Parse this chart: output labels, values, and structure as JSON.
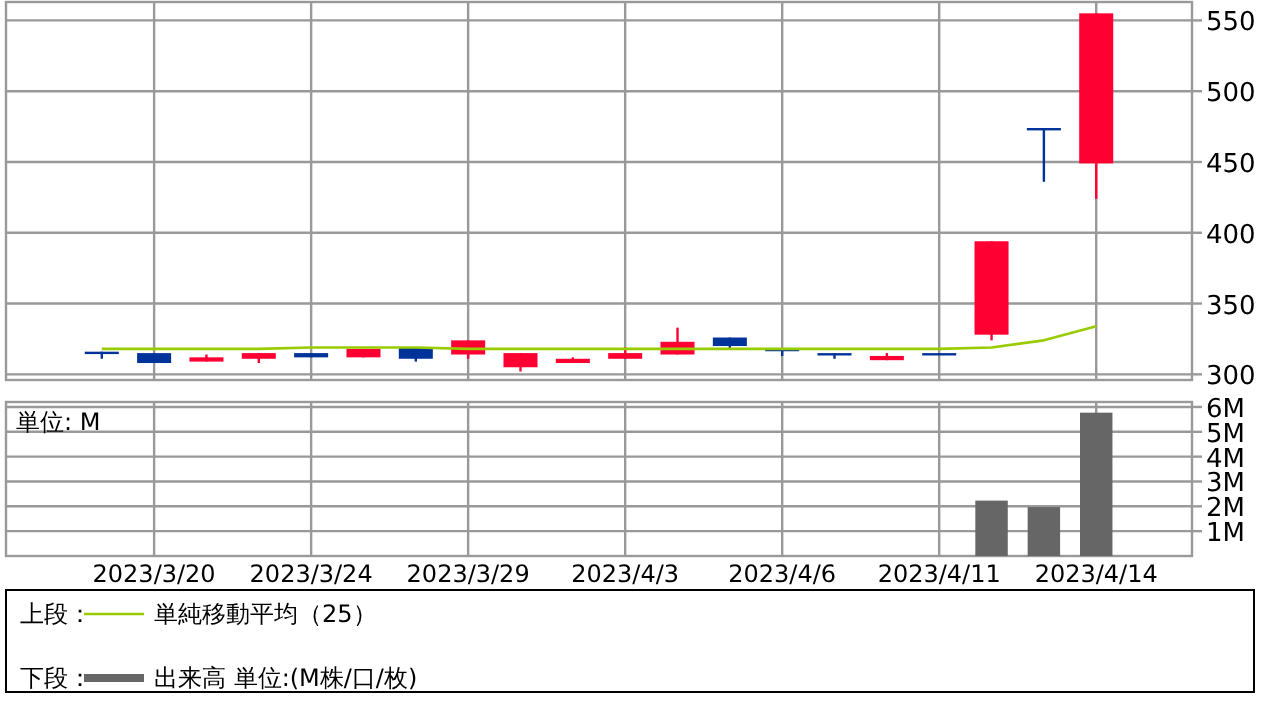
{
  "chart_data": [
    {
      "type": "candlestick",
      "categories": [
        null,
        "2023/3/20",
        null,
        null,
        "2023/3/24",
        null,
        null,
        "2023/3/29",
        null,
        null,
        "2023/4/3",
        null,
        null,
        "2023/4/6",
        null,
        null,
        "2023/4/11",
        null,
        null,
        "2023/4/14"
      ],
      "ohlc": [
        [
          316,
          316,
          311,
          315
        ],
        [
          315,
          315,
          308,
          308
        ],
        [
          309,
          314,
          309,
          312
        ],
        [
          311,
          315,
          308,
          315
        ],
        [
          315,
          315,
          312,
          312
        ],
        [
          312,
          318,
          312,
          318
        ],
        [
          319,
          319,
          309,
          311
        ],
        [
          314,
          324,
          311,
          324
        ],
        [
          305,
          315,
          302,
          315
        ],
        [
          308,
          312,
          308,
          311
        ],
        [
          311,
          319,
          311,
          315
        ],
        [
          314,
          333,
          314,
          323
        ],
        [
          326,
          326,
          318,
          320
        ],
        [
          318,
          318,
          313,
          317
        ],
        [
          315,
          315,
          311,
          314
        ],
        [
          310,
          315,
          310,
          313
        ],
        [
          315,
          315,
          314,
          314
        ],
        [
          328,
          394,
          324,
          394
        ],
        [
          474,
          474,
          436,
          474
        ],
        [
          449,
          555,
          424,
          555
        ]
      ],
      "colors": [
        "#003399",
        "#003399",
        "#ff0033",
        "#ff0033",
        "#003399",
        "#ff0033",
        "#003399",
        "#ff0033",
        "#ff0033",
        "#ff0033",
        "#ff0033",
        "#ff0033",
        "#003399",
        "#003399",
        "#003399",
        "#ff0033",
        "#003399",
        "#ff0033",
        "#003399",
        "#ff0033"
      ],
      "series": [
        {
          "type": "line",
          "name": "単純移動平均（25）",
          "color": "#99cc00",
          "values": [
            318,
            318,
            318,
            318,
            319,
            319,
            319,
            318,
            318,
            318,
            318,
            318,
            318,
            318,
            318,
            318,
            318,
            319,
            324,
            334
          ]
        }
      ],
      "ylim": [
        296,
        563
      ],
      "yticks": [
        300,
        350,
        400,
        450,
        500,
        550
      ],
      "grid": true,
      "tick_labels": "y",
      "legend": "bottom",
      "annotations": [
        "上段："
      ]
    },
    {
      "type": "bar",
      "categories": [
        null,
        "2023/3/20",
        null,
        null,
        "2023/3/24",
        null,
        null,
        "2023/3/29",
        null,
        null,
        "2023/4/3",
        null,
        null,
        "2023/4/6",
        null,
        null,
        "2023/4/11",
        null,
        null,
        "2023/4/14"
      ],
      "series": [
        {
          "name": "出来高 単位:(M株/口/枚)",
          "color": "#666666",
          "values": [
            0,
            0,
            0,
            0,
            0,
            0,
            0,
            0,
            0,
            0,
            0,
            0,
            0,
            0,
            0,
            0,
            0,
            2.23,
            1.97,
            5.77
          ]
        }
      ],
      "ylim": [
        0,
        6.2
      ],
      "yticks": [
        {
          "value": 1,
          "label": "1M"
        },
        {
          "value": 2,
          "label": "2M"
        },
        {
          "value": 3,
          "label": "3M"
        },
        {
          "value": 4,
          "label": "4M"
        },
        {
          "value": 5,
          "label": "5M"
        },
        {
          "value": 6,
          "label": "6M"
        }
      ],
      "grid": true,
      "legend": "bottom",
      "annotations": [
        "単位: M",
        "下段："
      ]
    }
  ]
}
